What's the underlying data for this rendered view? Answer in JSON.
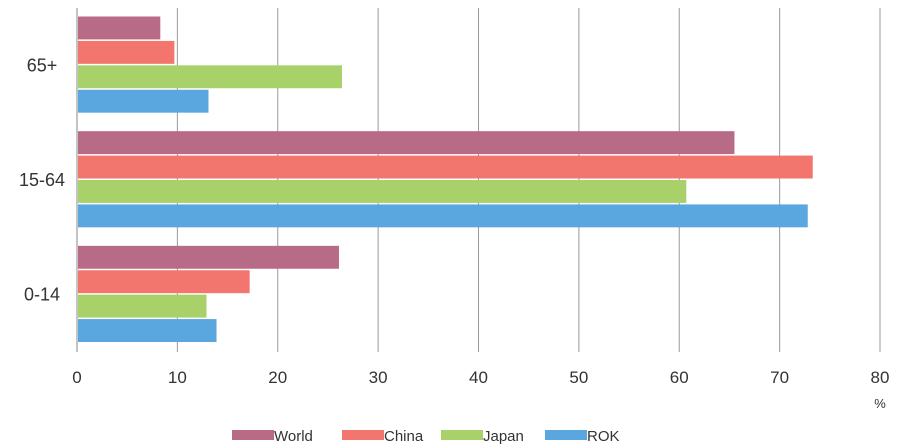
{
  "chart_data": {
    "type": "bar",
    "orientation": "horizontal",
    "categories": [
      "65+",
      "15-64",
      "0-14"
    ],
    "series": [
      {
        "name": "World",
        "color": "#b86b86",
        "values": [
          8.3,
          65.5,
          26.1
        ]
      },
      {
        "name": "China",
        "color": "#f2766e",
        "values": [
          9.7,
          73.3,
          17.2
        ]
      },
      {
        "name": "Japan",
        "color": "#a9d16a",
        "values": [
          26.4,
          60.7,
          12.9
        ]
      },
      {
        "name": "ROK",
        "color": "#5aa7df",
        "values": [
          13.1,
          72.8,
          13.9
        ]
      }
    ],
    "x_ticks": [
      "0",
      "10",
      "20",
      "30",
      "40",
      "50",
      "60",
      "70",
      "80"
    ],
    "xlim": [
      0,
      80
    ],
    "x_unit": "%",
    "grid": true,
    "legend_position": "bottom"
  }
}
